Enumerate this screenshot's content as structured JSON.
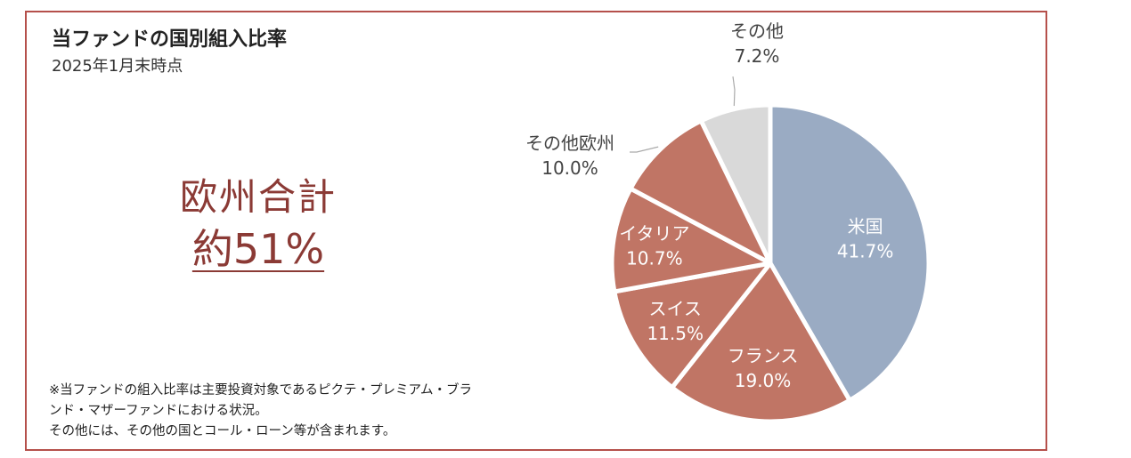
{
  "header": {
    "title": "当ファンドの国別組入比率",
    "date": "2025年1月末時点"
  },
  "summary": {
    "label": "欧州合計",
    "value": "約51%"
  },
  "notes": [
    "※当ファンドの組入比率は主要投資対象であるピクテ・プレミアム・ブラ",
    "ンド・マザーファンドにおける状況。",
    "その他には、その他の国とコール・ローン等が含まれます。"
  ],
  "chart_data": {
    "type": "pie",
    "title": "当ファンドの国別組入比率",
    "slices": [
      {
        "label": "米国",
        "value": 41.7,
        "value_label": "41.7%",
        "color": "#9aabc3"
      },
      {
        "label": "フランス",
        "value": 19.0,
        "value_label": "19.0%",
        "color": "#c07565"
      },
      {
        "label": "スイス",
        "value": 11.5,
        "value_label": "11.5%",
        "color": "#c07565"
      },
      {
        "label": "イタリア",
        "value": 10.7,
        "value_label": "10.7%",
        "color": "#c07565"
      },
      {
        "label": "その他欧州",
        "value": 10.0,
        "value_label": "10.0%",
        "color": "#c07565"
      },
      {
        "label": "その他",
        "value": 7.2,
        "value_label": "7.2%",
        "color": "#d9d9d9"
      }
    ]
  }
}
